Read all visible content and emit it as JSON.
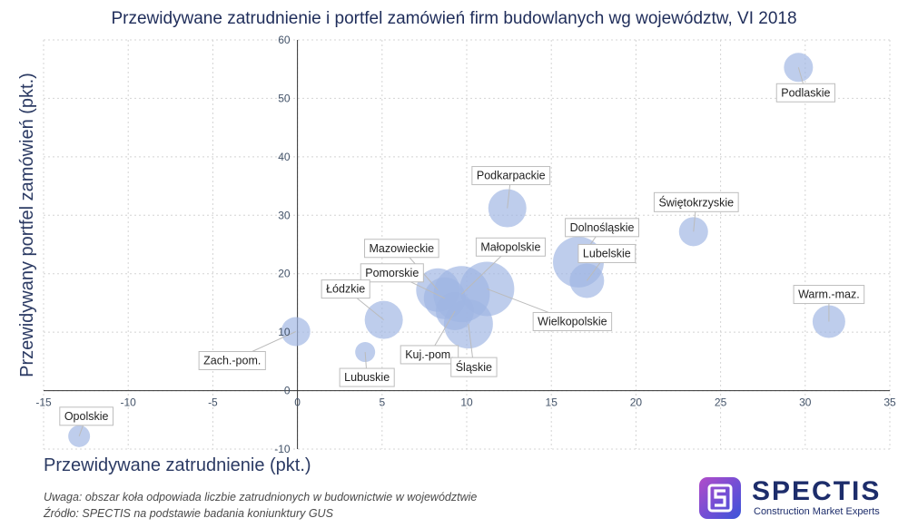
{
  "chart_data": {
    "type": "bubble",
    "title": "Przewidywane zatrudnienie i portfel zamówień firm budowlanych wg województw, VI 2018",
    "xlabel": "Przewidywane zatrudnienie (pkt.)",
    "ylabel": "Przewidywany portfel zamówień (pkt.)",
    "xlim": [
      -15,
      35
    ],
    "ylim": [
      -10,
      60
    ],
    "xticks": [
      -15,
      -10,
      -5,
      0,
      5,
      10,
      15,
      20,
      25,
      30,
      35
    ],
    "yticks": [
      -10,
      0,
      10,
      20,
      30,
      40,
      50,
      60
    ],
    "grid": true,
    "bubble_color": "#9fb6e3",
    "points": [
      {
        "name": "Podlaskie",
        "x": 29.6,
        "y": 55.3,
        "size": 16
      },
      {
        "name": "Świętokrzyskie",
        "x": 23.4,
        "y": 27.2,
        "size": 16
      },
      {
        "name": "Warm.-maz.",
        "x": 31.4,
        "y": 11.8,
        "size": 18
      },
      {
        "name": "Podkarpackie",
        "x": 12.4,
        "y": 31.2,
        "size": 21
      },
      {
        "name": "Dolnośląskie",
        "x": 16.6,
        "y": 22.0,
        "size": 28
      },
      {
        "name": "Lubelskie",
        "x": 17.1,
        "y": 18.8,
        "size": 19
      },
      {
        "name": "Mazowieckie",
        "x": 8.3,
        "y": 17.2,
        "size": 24
      },
      {
        "name": "Małopolskie",
        "x": 9.7,
        "y": 16.5,
        "size": 31
      },
      {
        "name": "Wielkopolskie",
        "x": 11.2,
        "y": 17.4,
        "size": 30
      },
      {
        "name": "Pomorskie",
        "x": 8.7,
        "y": 15.8,
        "size": 23
      },
      {
        "name": "Łódzkie",
        "x": 5.1,
        "y": 12.1,
        "size": 21
      },
      {
        "name": "Kuj.-pom.",
        "x": 9.3,
        "y": 13.6,
        "size": 21
      },
      {
        "name": "Śląskie",
        "x": 10.1,
        "y": 11.4,
        "size": 27
      },
      {
        "name": "Zach.-pom.",
        "x": -0.1,
        "y": 10.1,
        "size": 16
      },
      {
        "name": "Lubuskie",
        "x": 4.0,
        "y": 6.6,
        "size": 11
      },
      {
        "name": "Opolskie",
        "x": -12.9,
        "y": -7.8,
        "size": 12
      }
    ]
  },
  "notes": {
    "line1": "Uwaga: obszar koła odpowiada liczbie zatrudnionych w budownictwie w województwie",
    "line2": "Źródło: SPECTIS na podstawie badania koniunktury GUS"
  },
  "logo": {
    "brand": "SPECTIS",
    "tagline": "Construction Market Experts",
    "icon_name": "spectis-s-logo-icon"
  }
}
